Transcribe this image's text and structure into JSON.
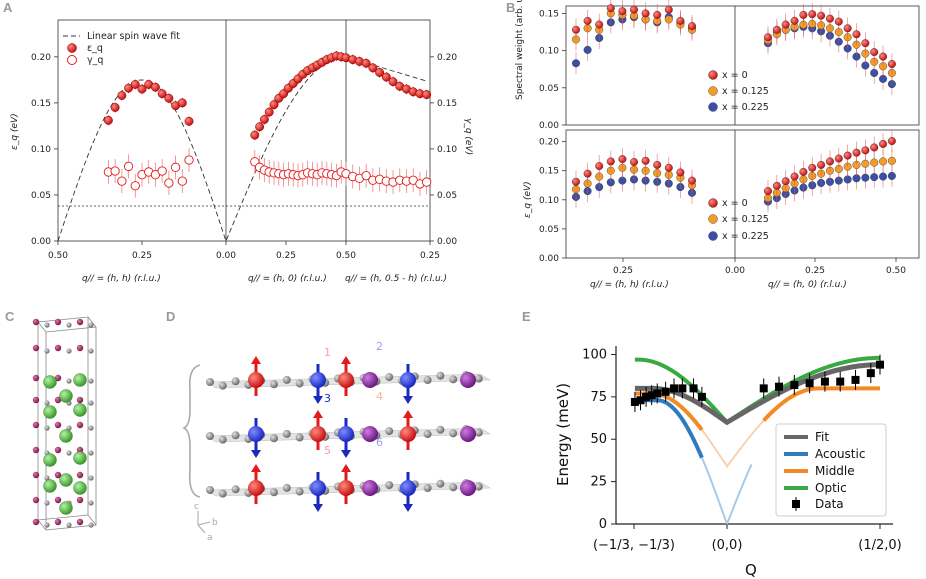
{
  "panels": {
    "A": "A",
    "B": "B",
    "C": "C",
    "D": "D",
    "E": "E"
  },
  "colors": {
    "red": "#e31a1c",
    "orange": "#f39c28",
    "blue": "#3a4fa8",
    "fit": "#666666",
    "acoustic": "#2f7bbd",
    "middle": "#f28a25",
    "optic": "#3aa843"
  },
  "chart_data": [
    {
      "id": "A",
      "type": "scatter",
      "title": "",
      "ylabel_left": "ε_q (eV)",
      "ylabel_right": "γ_q (eV)",
      "ylim": [
        0,
        0.24
      ],
      "yticks": [
        "0.00",
        "0.05",
        "0.10",
        "0.15",
        "0.20"
      ],
      "xticks": [
        "0.50",
        "0.25",
        "0.00",
        "0.25",
        "0.50",
        "0.25"
      ],
      "xlabels": [
        "q// = (h, h) (r.l.u.)",
        "q// = (h, 0) (r.l.u.)",
        "q// = (h, 0.5 - h) (r.l.u.)"
      ],
      "legend": [
        "Linear spin wave fit",
        "ε_q",
        "γ_q"
      ],
      "reference_line": 0.038,
      "segments": [
        {
          "path": "(h,h)",
          "x": [
            0.35,
            0.33,
            0.31,
            0.29,
            0.27,
            0.25,
            0.23,
            0.21,
            0.19,
            0.17,
            0.15,
            0.13,
            0.11
          ],
          "epsilon": [
            0.131,
            0.145,
            0.158,
            0.166,
            0.17,
            0.165,
            0.17,
            0.167,
            0.16,
            0.155,
            0.147,
            0.15,
            0.13
          ],
          "gamma": [
            0.075,
            0.076,
            0.065,
            0.081,
            0.06,
            0.072,
            0.075,
            0.072,
            0.076,
            0.063,
            0.08,
            0.065,
            0.088
          ]
        },
        {
          "path": "(h,0)",
          "x": [
            0.12,
            0.14,
            0.16,
            0.18,
            0.2,
            0.22,
            0.24,
            0.26,
            0.28,
            0.3,
            0.32,
            0.34,
            0.36,
            0.38,
            0.4,
            0.42,
            0.44,
            0.46,
            0.48,
            0.5
          ],
          "epsilon": [
            0.115,
            0.124,
            0.132,
            0.14,
            0.148,
            0.155,
            0.16,
            0.166,
            0.171,
            0.176,
            0.181,
            0.185,
            0.188,
            0.191,
            0.194,
            0.197,
            0.199,
            0.201,
            0.2,
            0.199
          ],
          "gamma": [
            0.086,
            0.08,
            0.077,
            0.075,
            0.074,
            0.073,
            0.072,
            0.073,
            0.072,
            0.071,
            0.072,
            0.074,
            0.073,
            0.072,
            0.074,
            0.073,
            0.072,
            0.071,
            0.075,
            0.073
          ]
        },
        {
          "path": "(h,0.5-h)",
          "x": [
            0.02,
            0.04,
            0.06,
            0.08,
            0.1,
            0.12,
            0.14,
            0.16,
            0.18,
            0.2,
            0.22,
            0.24
          ],
          "epsilon": [
            0.197,
            0.195,
            0.193,
            0.188,
            0.183,
            0.178,
            0.173,
            0.168,
            0.165,
            0.162,
            0.16,
            0.159
          ],
          "gamma": [
            0.07,
            0.068,
            0.071,
            0.066,
            0.067,
            0.065,
            0.064,
            0.066,
            0.065,
            0.066,
            0.062,
            0.064
          ]
        }
      ]
    },
    {
      "id": "B-top",
      "type": "scatter",
      "ylabel": "Spectral weight (arb. unit)",
      "ylim": [
        0,
        0.16
      ],
      "yticks": [
        "0.00",
        "0.05",
        "0.10",
        "0.15"
      ],
      "legend": [
        "x = 0",
        "x = 0.125",
        "x = 0.225"
      ],
      "series": [
        {
          "name": "x = 0",
          "left": [
            0.128,
            0.14,
            0.135,
            0.157,
            0.153,
            0.155,
            0.15,
            0.148,
            0.155,
            0.14,
            0.133
          ],
          "right": [
            0.118,
            0.128,
            0.135,
            0.14,
            0.148,
            0.149,
            0.147,
            0.143,
            0.139,
            0.13,
            0.122,
            0.11,
            0.098,
            0.092,
            0.082
          ]
        },
        {
          "name": "x = 0.125",
          "left": [
            0.115,
            0.13,
            0.128,
            0.15,
            0.148,
            0.147,
            0.142,
            0.14,
            0.142,
            0.135,
            0.128
          ],
          "right": [
            0.114,
            0.122,
            0.128,
            0.132,
            0.135,
            0.136,
            0.134,
            0.13,
            0.125,
            0.118,
            0.108,
            0.096,
            0.085,
            0.079,
            0.07
          ]
        },
        {
          "name": "x = 0.225",
          "left": [
            0.083,
            0.101,
            0.117,
            0.138,
            0.142,
            0.145,
            0.142,
            0.138,
            0.145,
            0.138,
            0.13
          ],
          "right": [
            0.11,
            0.125,
            0.128,
            0.13,
            0.132,
            0.13,
            0.126,
            0.12,
            0.112,
            0.103,
            0.092,
            0.08,
            0.07,
            0.062,
            0.055
          ]
        }
      ]
    },
    {
      "id": "B-bottom",
      "type": "scatter",
      "ylabel": "ε_q (eV)",
      "ylim": [
        0,
        0.22
      ],
      "yticks": [
        "0.00",
        "0.05",
        "0.10",
        "0.15",
        "0.20"
      ],
      "xticks": [
        "0.25",
        "0.00",
        "0.25",
        "0.50"
      ],
      "xlabels": [
        "q// = (h, h) (r.l.u.)",
        "q// = (h, 0) (r.l.u.)"
      ],
      "legend": [
        "x = 0",
        "x = 0.125",
        "x = 0.225"
      ],
      "series": [
        {
          "name": "x = 0",
          "left": [
            0.131,
            0.145,
            0.158,
            0.166,
            0.17,
            0.165,
            0.167,
            0.16,
            0.155,
            0.147,
            0.133
          ],
          "right": [
            0.115,
            0.124,
            0.132,
            0.14,
            0.148,
            0.155,
            0.16,
            0.166,
            0.171,
            0.176,
            0.181,
            0.185,
            0.19,
            0.196,
            0.201
          ]
        },
        {
          "name": "x = 0.125",
          "left": [
            0.118,
            0.128,
            0.14,
            0.15,
            0.155,
            0.152,
            0.15,
            0.146,
            0.143,
            0.138,
            0.125
          ],
          "right": [
            0.103,
            0.112,
            0.12,
            0.128,
            0.135,
            0.141,
            0.145,
            0.15,
            0.153,
            0.157,
            0.16,
            0.162,
            0.164,
            0.166,
            0.167
          ]
        },
        {
          "name": "x = 0.225",
          "left": [
            0.105,
            0.115,
            0.122,
            0.13,
            0.133,
            0.135,
            0.133,
            0.131,
            0.128,
            0.122,
            0.112
          ],
          "right": [
            0.097,
            0.103,
            0.11,
            0.116,
            0.121,
            0.125,
            0.129,
            0.131,
            0.133,
            0.135,
            0.137,
            0.138,
            0.139,
            0.14,
            0.141
          ]
        }
      ]
    },
    {
      "id": "E",
      "type": "line",
      "ylabel": "Energy (meV)",
      "xlabel": "Q",
      "ylim": [
        0,
        105
      ],
      "yticks": [
        "0",
        "25",
        "50",
        "75",
        "100"
      ],
      "xticks": [
        "(−1/3, −1/3)",
        "(0,0)",
        "(1/2,0)"
      ],
      "legend": [
        "Fit",
        "Acoustic",
        "Middle",
        "Optic",
        "Data"
      ],
      "data": {
        "x": [
          -0.33,
          -0.31,
          -0.29,
          -0.27,
          -0.25,
          -0.22,
          -0.19,
          -0.16,
          -0.12,
          -0.09,
          0.12,
          0.17,
          0.22,
          0.27,
          0.32,
          0.37,
          0.42,
          0.47,
          0.5
        ],
        "y": [
          72,
          73,
          75,
          76,
          77,
          78,
          80,
          80,
          80,
          75,
          80,
          81,
          82,
          83,
          84,
          84,
          85,
          89,
          94
        ]
      }
    }
  ],
  "panel_D_labels": [
    "1",
    "2",
    "3",
    "4",
    "5",
    "6"
  ],
  "panel_D_axes": {
    "c": "c",
    "b": "b",
    "a": "a"
  }
}
